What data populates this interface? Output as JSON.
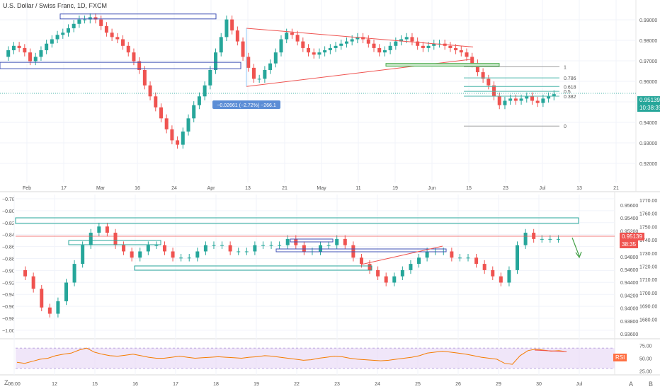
{
  "header": {
    "title": "U.S. Dollar / Swiss Franc, 1D, FXCM"
  },
  "top_pane": {
    "y_ticks": [
      "0.99000",
      "0.98000",
      "0.97000",
      "0.96000",
      "0.95000",
      "0.94000",
      "0.93000",
      "0.92000"
    ],
    "x_ticks": [
      "Feb",
      "17",
      "Mar",
      "16",
      "24",
      "Apr",
      "13",
      "21",
      "May",
      "11",
      "19",
      "Jun",
      "15",
      "23",
      "Jul",
      "13",
      "21"
    ],
    "last_price": "0.95139",
    "countdown": "10:38:35",
    "measure_label": "−0.02661 (−2.72%) −266.1",
    "fib_labels": [
      "1",
      "0.786",
      "0.618",
      "0.5",
      "0.382",
      "0"
    ],
    "colors": {
      "up": "#26a69a",
      "down": "#ef5350",
      "trend": "#ef5350",
      "zone": "#3f51b5",
      "green_zone": "#4caf50"
    }
  },
  "middle_pane": {
    "left_ticks": [
      "−0.78",
      "−0.80",
      "−0.82",
      "−0.84",
      "−0.86",
      "−0.88",
      "−0.90",
      "−0.92",
      "−0.94",
      "−0.96",
      "−0.98",
      "−1.00"
    ],
    "mid_ticks": [
      "0.95600",
      "0.95400",
      "0.95200",
      "0.95000",
      "0.94800",
      "0.94600",
      "0.94400",
      "0.94200",
      "0.94000",
      "0.93800",
      "0.93600"
    ],
    "right_ticks": [
      "1770.00",
      "1760.00",
      "1750.00",
      "1740.00",
      "1730.00",
      "1720.00",
      "1710.00",
      "1700.00",
      "1690.00",
      "1680.00"
    ],
    "x_ticks": [
      "06:00",
      "12",
      "15",
      "16",
      "17",
      "18",
      "19",
      "22",
      "23",
      "24",
      "25",
      "26",
      "29",
      "30",
      "Jul"
    ],
    "price_label": "0.95139",
    "timer_label": "38:35"
  },
  "rsi_pane": {
    "ticks": [
      "75.00",
      "50.00",
      "25.00"
    ],
    "badge": "RSI",
    "colors": {
      "line": "#f57c00",
      "band": "#e9dcf7"
    }
  },
  "chart_data": [
    {
      "type": "candlestick",
      "title": "U.S. Dollar / Swiss Franc, 1D, FXCM",
      "ylim": [
        0.915,
        0.99
      ],
      "close_series": [
        0.968,
        0.971,
        0.973,
        0.972,
        0.97,
        0.966,
        0.968,
        0.971,
        0.974,
        0.976,
        0.978,
        0.979,
        0.981,
        0.983,
        0.985,
        0.985,
        0.986,
        0.985,
        0.982,
        0.979,
        0.977,
        0.976,
        0.973,
        0.97,
        0.966,
        0.962,
        0.955,
        0.95,
        0.945,
        0.94,
        0.935,
        0.93,
        0.928,
        0.934,
        0.94,
        0.946,
        0.95,
        0.955,
        0.962,
        0.97,
        0.977,
        0.985,
        0.98,
        0.975,
        0.968,
        0.963,
        0.958,
        0.958,
        0.962,
        0.965,
        0.97,
        0.976,
        0.979,
        0.978,
        0.975,
        0.972,
        0.97,
        0.969,
        0.97,
        0.971,
        0.972,
        0.973,
        0.974,
        0.975,
        0.976,
        0.977,
        0.976,
        0.974,
        0.972,
        0.97,
        0.971,
        0.973,
        0.975,
        0.976,
        0.977,
        0.975,
        0.973,
        0.972,
        0.973,
        0.974,
        0.974,
        0.973,
        0.972,
        0.971,
        0.97,
        0.968,
        0.965,
        0.961,
        0.958,
        0.955,
        0.95,
        0.946,
        0.948,
        0.949,
        0.948,
        0.949,
        0.95,
        0.948,
        0.947,
        0.949,
        0.95,
        0.951
      ],
      "fib_levels": [
        0.9635,
        0.9584,
        0.9545,
        0.9523,
        0.9501,
        0.9365
      ],
      "last_price": 0.95139
    },
    {
      "type": "candlestick",
      "title": "",
      "ylim": [
        0.936,
        0.957
      ],
      "close_series": [
        0.946,
        0.945,
        0.943,
        0.94,
        0.939,
        0.941,
        0.944,
        0.947,
        0.95,
        0.952,
        0.953,
        0.952,
        0.95,
        0.949,
        0.948,
        0.949,
        0.95,
        0.95,
        0.949,
        0.948,
        0.948,
        0.948,
        0.949,
        0.95,
        0.95,
        0.95,
        0.949,
        0.949,
        0.949,
        0.95,
        0.95,
        0.95,
        0.95,
        0.951,
        0.95,
        0.949,
        0.949,
        0.95,
        0.95,
        0.951,
        0.95,
        0.948,
        0.947,
        0.946,
        0.945,
        0.944,
        0.945,
        0.946,
        0.947,
        0.948,
        0.949,
        0.949,
        0.949,
        0.948,
        0.948,
        0.948,
        0.947,
        0.946,
        0.945,
        0.944,
        0.946,
        0.95,
        0.952,
        0.951,
        0.951,
        0.951,
        0.951
      ]
    },
    {
      "type": "line",
      "title": "RSI",
      "ylim": [
        20,
        80
      ],
      "values": [
        42,
        40,
        44,
        48,
        50,
        55,
        58,
        60,
        66,
        70,
        62,
        58,
        55,
        54,
        56,
        58,
        55,
        52,
        50,
        50,
        52,
        54,
        52,
        50,
        51,
        52,
        53,
        52,
        51,
        50,
        52,
        53,
        55,
        54,
        52,
        50,
        48,
        46,
        47,
        50,
        52,
        54,
        53,
        50,
        48,
        47,
        46,
        45,
        46,
        48,
        50,
        52,
        55,
        60,
        62,
        64,
        62,
        60,
        58,
        55,
        52,
        50,
        48,
        40,
        38,
        55,
        65,
        68,
        66,
        64,
        65,
        63
      ]
    }
  ]
}
